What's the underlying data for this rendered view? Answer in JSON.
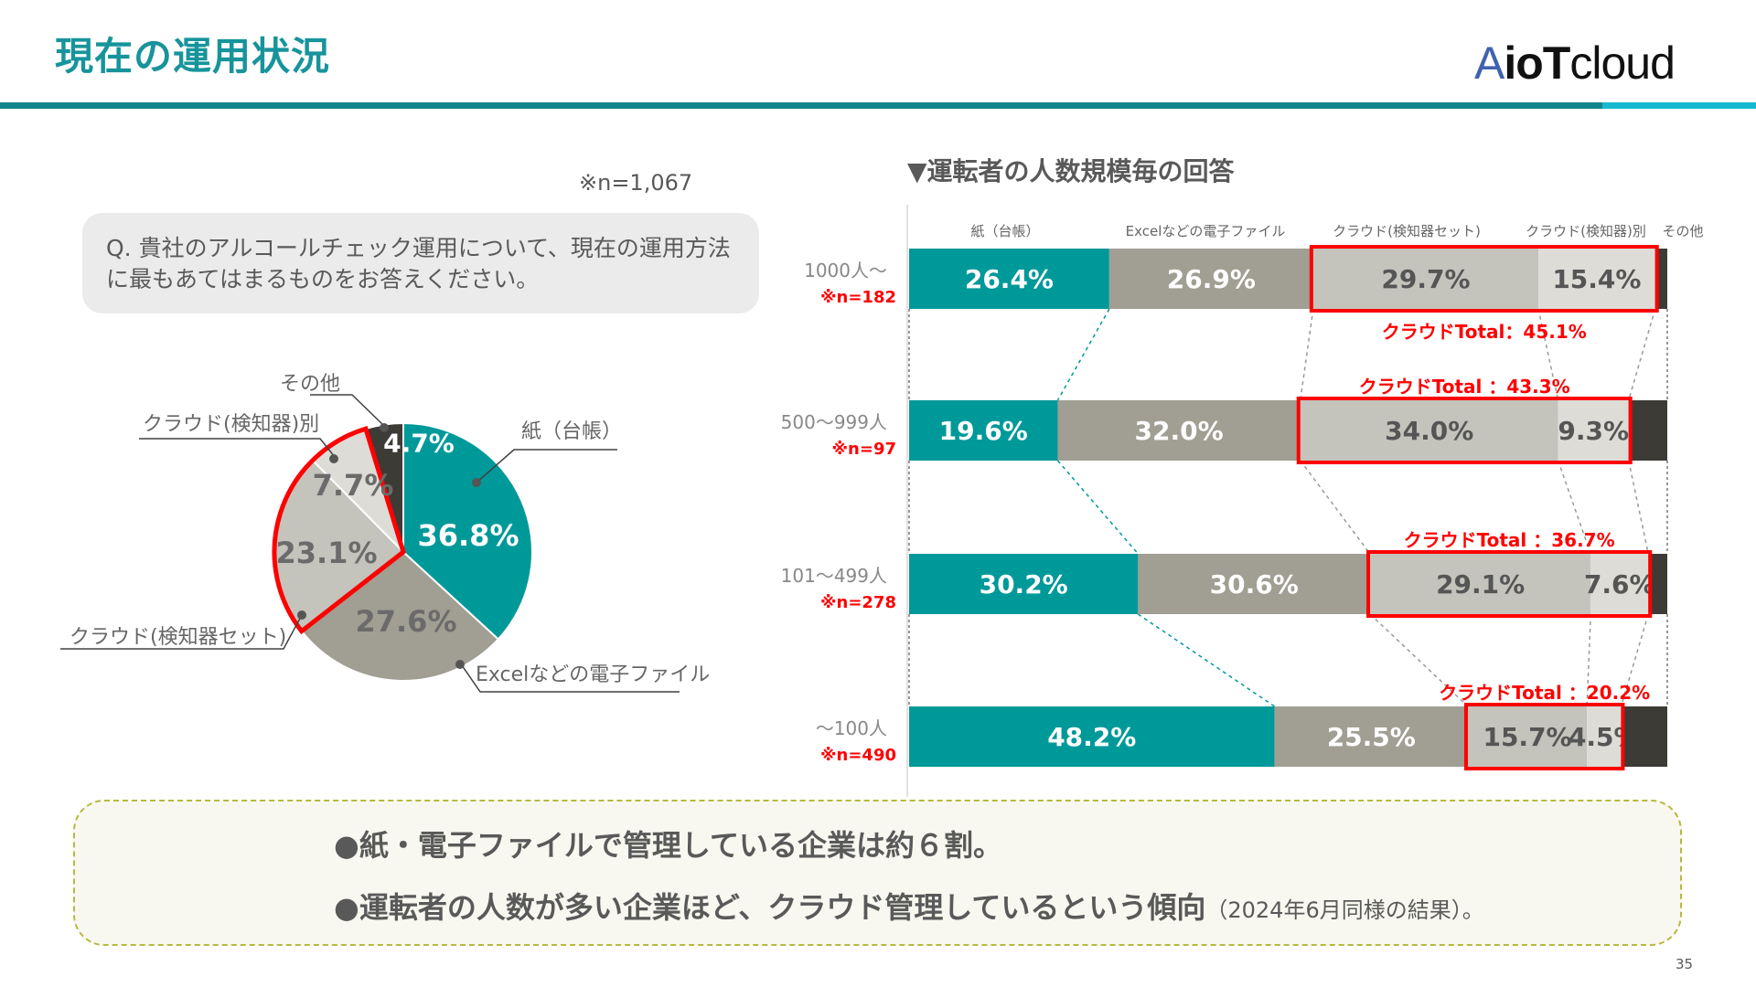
{
  "header": {
    "title": "現在の運用状況",
    "logo": {
      "a": "A",
      "io": "io",
      "t": "T",
      "cloud": "cloud"
    }
  },
  "colors": {
    "paper": "#00999a",
    "excel": "#a19e93",
    "cloud_set": "#c4c3bc",
    "cloud_separate": "#dddcd7",
    "other": "#3d3b36",
    "highlight": "#ff0000",
    "accent": "#17949b"
  },
  "survey": {
    "n_total": "※n=1,067",
    "question": "Q. 貴社のアルコールチェック運用について、現在の運用方法に最もあてはまるものをお答えください。"
  },
  "chart_data": [
    {
      "type": "pie",
      "categories": [
        "紙（台帳）",
        "Excelなどの電子ファイル",
        "クラウド(検知器セット)",
        "クラウド(検知器)別",
        "その他"
      ],
      "values": [
        36.8,
        27.6,
        23.1,
        7.7,
        4.7
      ],
      "labels": [
        "36.8%",
        "27.6%",
        "23.1%",
        "7.7%",
        "4.7%"
      ],
      "highlighted": [
        "クラウド(検知器セット)",
        "クラウド(検知器)別"
      ]
    },
    {
      "type": "bar",
      "stacked": true,
      "orientation": "horizontal",
      "title": "▼運転者の人数規模毎の回答",
      "series_names": [
        "紙（台帳）",
        "Excelなどの電子ファイル",
        "クラウド(検知器セット)",
        "クラウド(検知器)別",
        "その他"
      ],
      "rows": [
        {
          "label": "1000人～",
          "n": "※n=182",
          "values": [
            26.4,
            26.9,
            29.7,
            15.4,
            1.6
          ],
          "labels": [
            "26.4%",
            "26.9%",
            "29.7%",
            "15.4%",
            ""
          ],
          "cloud_total": "クラウドTotal：45.1%"
        },
        {
          "label": "500～999人",
          "n": "※n=97",
          "values": [
            19.6,
            32.0,
            34.0,
            9.3,
            5.1
          ],
          "labels": [
            "19.6%",
            "32.0%",
            "34.0%",
            "9.3%",
            ""
          ],
          "cloud_total": "クラウドTotal ：43.3%"
        },
        {
          "label": "101～499人",
          "n": "※n=278",
          "values": [
            30.2,
            30.6,
            29.1,
            7.6,
            2.5
          ],
          "labels": [
            "30.2%",
            "30.6%",
            "29.1%",
            "7.6%",
            ""
          ],
          "cloud_total": "クラウドTotal ：36.7%"
        },
        {
          "label": "～100人",
          "n": "※n=490",
          "values": [
            48.2,
            25.5,
            15.7,
            4.5,
            6.1
          ],
          "labels": [
            "48.2%",
            "25.5%",
            "15.7%",
            "4.5%",
            ""
          ],
          "cloud_total": "クラウドTotal ：20.2%"
        }
      ]
    }
  ],
  "summary": {
    "line1": "●紙・電子ファイルで管理している企業は約６割。",
    "line2": "●運転者の人数が多い企業ほど、クラウド管理しているという傾向",
    "line2_note": "（2024年6月同様の結果）。"
  },
  "page_number": "35"
}
